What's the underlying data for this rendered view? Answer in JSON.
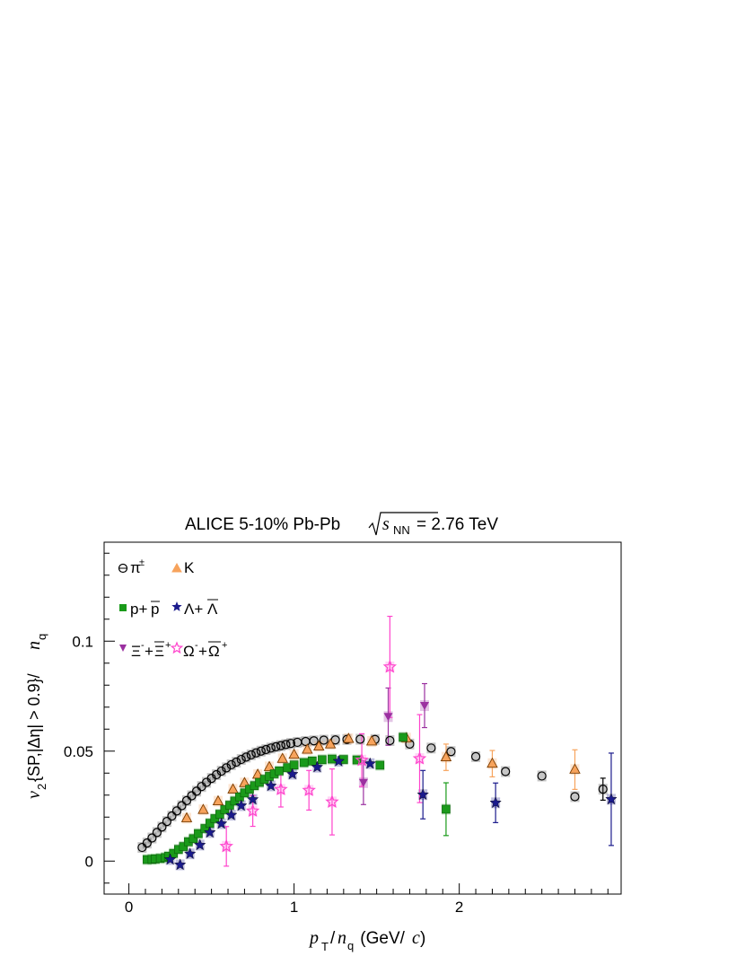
{
  "chart_data": {
    "type": "scatter",
    "title": "ALICE 5-10% Pb-Pb",
    "title_energy": {
      "sqrt_symbol": "√",
      "var": "s",
      "sub": "NN",
      "value": "= 2.76 TeV"
    },
    "xlabel": {
      "var": "p",
      "var_sub": "T",
      "div": "/",
      "nq": "n",
      "nq_sub": "q",
      "unit_open": " (GeV/",
      "unit_c": "c",
      "unit_close": ")"
    },
    "ylabel": {
      "var": "v",
      "var_sub": "2",
      "text": "{SP,|Δη| > 0.9}/",
      "nq": "n",
      "nq_sub": "q"
    },
    "xlim": [
      -0.15,
      2.98
    ],
    "ylim": [
      -0.015,
      0.145
    ],
    "x_ticks": [
      0,
      1,
      2
    ],
    "x_tick_labels": [
      "0",
      "1",
      "2"
    ],
    "y_ticks": [
      0,
      0.05,
      0.1
    ],
    "y_tick_labels": [
      "0",
      "0.05",
      "0.1"
    ],
    "grid": false,
    "legend_position": "top-left",
    "series": [
      {
        "name": "π±",
        "label": "π",
        "label_sup": "±",
        "marker": "circle-open",
        "color": "#000000",
        "points": [
          [
            0.08,
            0.0062
          ],
          [
            0.11,
            0.0082
          ],
          [
            0.14,
            0.0105
          ],
          [
            0.17,
            0.013
          ],
          [
            0.2,
            0.0155
          ],
          [
            0.23,
            0.018
          ],
          [
            0.26,
            0.0205
          ],
          [
            0.29,
            0.0228
          ],
          [
            0.32,
            0.0252
          ],
          [
            0.35,
            0.0275
          ],
          [
            0.38,
            0.0297
          ],
          [
            0.41,
            0.0318
          ],
          [
            0.44,
            0.0339
          ],
          [
            0.47,
            0.0358
          ],
          [
            0.5,
            0.0376
          ],
          [
            0.53,
            0.0393
          ],
          [
            0.56,
            0.0409
          ],
          [
            0.59,
            0.0424
          ],
          [
            0.62,
            0.0438
          ],
          [
            0.65,
            0.045
          ],
          [
            0.68,
            0.0462
          ],
          [
            0.71,
            0.0473
          ],
          [
            0.74,
            0.0483
          ],
          [
            0.77,
            0.0492
          ],
          [
            0.8,
            0.05
          ],
          [
            0.83,
            0.0507
          ],
          [
            0.86,
            0.0514
          ],
          [
            0.89,
            0.052
          ],
          [
            0.92,
            0.0525
          ],
          [
            0.95,
            0.053
          ],
          [
            0.98,
            0.0535
          ],
          [
            1.02,
            0.054
          ],
          [
            1.07,
            0.0544
          ],
          [
            1.12,
            0.0547
          ],
          [
            1.18,
            0.055
          ],
          [
            1.25,
            0.0551
          ],
          [
            1.32,
            0.0553
          ],
          [
            1.4,
            0.0554
          ],
          [
            1.49,
            0.0553
          ],
          [
            1.58,
            0.0548
          ],
          [
            1.7,
            0.0532
          ],
          [
            1.83,
            0.0514
          ],
          [
            1.95,
            0.0498
          ],
          [
            2.1,
            0.0475
          ],
          [
            2.28,
            0.0407
          ],
          [
            2.5,
            0.0387
          ],
          [
            2.7,
            0.0293
          ],
          [
            2.87,
            0.0327
          ]
        ],
        "errors": [
          [
            2.87,
            0.005
          ]
        ]
      },
      {
        "name": "K",
        "label": "K",
        "marker": "triangle-up",
        "color": "#f7a35c",
        "points": [
          [
            0.35,
            0.0195
          ],
          [
            0.45,
            0.0233
          ],
          [
            0.54,
            0.0272
          ],
          [
            0.63,
            0.0326
          ],
          [
            0.7,
            0.0355
          ],
          [
            0.78,
            0.0393
          ],
          [
            0.85,
            0.0428
          ],
          [
            0.93,
            0.0465
          ],
          [
            1.0,
            0.0484
          ],
          [
            1.08,
            0.0507
          ],
          [
            1.15,
            0.0521
          ],
          [
            1.22,
            0.0531
          ],
          [
            1.33,
            0.0556
          ],
          [
            1.47,
            0.0544
          ],
          [
            1.68,
            0.0559
          ],
          [
            1.92,
            0.0472
          ],
          [
            2.2,
            0.0443
          ],
          [
            2.7,
            0.0416
          ]
        ],
        "errors": [
          [
            1.92,
            0.006
          ],
          [
            2.2,
            0.006
          ],
          [
            2.7,
            0.009
          ]
        ]
      },
      {
        "name": "p+p̄",
        "label": "p+",
        "label_bar": "p",
        "marker": "square",
        "color": "#1a9a1a",
        "points": [
          [
            0.11,
            0.0007
          ],
          [
            0.14,
            0.0008
          ],
          [
            0.16,
            0.001
          ],
          [
            0.19,
            0.0012
          ],
          [
            0.22,
            0.0016
          ],
          [
            0.24,
            0.0022
          ],
          [
            0.27,
            0.0035
          ],
          [
            0.3,
            0.0053
          ],
          [
            0.33,
            0.0066
          ],
          [
            0.36,
            0.0088
          ],
          [
            0.39,
            0.0102
          ],
          [
            0.42,
            0.0125
          ],
          [
            0.46,
            0.0148
          ],
          [
            0.49,
            0.0172
          ],
          [
            0.52,
            0.0193
          ],
          [
            0.55,
            0.0213
          ],
          [
            0.58,
            0.0234
          ],
          [
            0.61,
            0.0254
          ],
          [
            0.64,
            0.0273
          ],
          [
            0.67,
            0.0292
          ],
          [
            0.7,
            0.031
          ],
          [
            0.73,
            0.0327
          ],
          [
            0.76,
            0.0343
          ],
          [
            0.79,
            0.0358
          ],
          [
            0.82,
            0.0372
          ],
          [
            0.85,
            0.0385
          ],
          [
            0.88,
            0.0397
          ],
          [
            0.91,
            0.041
          ],
          [
            0.96,
            0.0425
          ],
          [
            1.0,
            0.0437
          ],
          [
            1.06,
            0.0448
          ],
          [
            1.11,
            0.0455
          ],
          [
            1.17,
            0.0461
          ],
          [
            1.23,
            0.0464
          ],
          [
            1.3,
            0.0462
          ],
          [
            1.38,
            0.046
          ],
          [
            1.52,
            0.0436
          ],
          [
            1.66,
            0.0563
          ],
          [
            1.92,
            0.0236
          ]
        ],
        "errors": [
          [
            1.92,
            0.012
          ]
        ]
      },
      {
        "name": "Λ+Λ̄",
        "label": "Λ+",
        "label_bar": "Λ",
        "marker": "star",
        "color": "#1a1a8c",
        "points": [
          [
            0.25,
            0.0007
          ],
          [
            0.31,
            -0.0017
          ],
          [
            0.37,
            0.0033
          ],
          [
            0.43,
            0.0073
          ],
          [
            0.49,
            0.013
          ],
          [
            0.56,
            0.017
          ],
          [
            0.62,
            0.0209
          ],
          [
            0.68,
            0.0252
          ],
          [
            0.75,
            0.028
          ],
          [
            0.86,
            0.0342
          ],
          [
            0.99,
            0.0395
          ],
          [
            1.14,
            0.0427
          ],
          [
            1.27,
            0.0454
          ],
          [
            1.46,
            0.0443
          ],
          [
            1.78,
            0.0302
          ],
          [
            2.22,
            0.0265
          ],
          [
            2.92,
            0.0281
          ]
        ],
        "errors": [
          [
            1.78,
            0.011
          ],
          [
            2.22,
            0.009
          ],
          [
            2.92,
            0.021
          ]
        ]
      },
      {
        "name": "Ξ⁻+Ξ̄⁺",
        "label": "Ξ",
        "label_sup": "-",
        "label_plus": "+",
        "label_bar": "Ξ",
        "label_bar_sup": "+",
        "marker": "triangle-down",
        "color": "#9b30a0",
        "points": [
          [
            1.42,
            0.0357
          ],
          [
            1.57,
            0.0657
          ],
          [
            1.79,
            0.0707
          ]
        ],
        "errors": [
          [
            1.42,
            0.01
          ],
          [
            1.57,
            0.013
          ],
          [
            1.79,
            0.01
          ]
        ]
      },
      {
        "name": "Ω⁻+Ω̄⁺",
        "label": "Ω",
        "label_sup": "-",
        "label_plus": "+",
        "label_bar": "Ω",
        "label_bar_sup": "+",
        "marker": "star-open",
        "color": "#ff44cc",
        "points": [
          [
            0.59,
            0.0067
          ],
          [
            0.75,
            0.0228
          ],
          [
            0.92,
            0.0326
          ],
          [
            1.09,
            0.0322
          ],
          [
            1.23,
            0.0269
          ],
          [
            1.41,
            0.0459
          ],
          [
            1.58,
            0.0883
          ],
          [
            1.76,
            0.0466
          ]
        ],
        "errors": [
          [
            0.59,
            0.009
          ],
          [
            0.75,
            0.007
          ],
          [
            0.92,
            0.008
          ],
          [
            1.09,
            0.009
          ],
          [
            1.23,
            0.015
          ],
          [
            1.41,
            0.012
          ],
          [
            1.58,
            0.023
          ],
          [
            1.76,
            0.02
          ]
        ]
      }
    ]
  }
}
